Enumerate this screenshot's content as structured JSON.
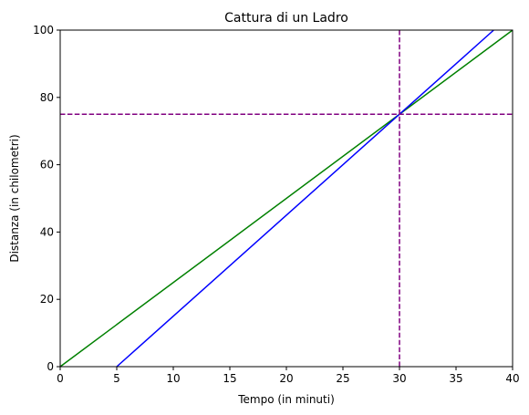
{
  "chart_data": {
    "type": "line",
    "title": "Cattura di un Ladro",
    "xlabel": "Tempo (in minuti)",
    "ylabel": "Distanza (in chilometri)",
    "xlim": [
      0,
      40
    ],
    "ylim": [
      0,
      100
    ],
    "xticks": [
      0,
      5,
      10,
      15,
      20,
      25,
      30,
      35,
      40
    ],
    "yticks": [
      0,
      20,
      40,
      60,
      80,
      100
    ],
    "grid": false,
    "series": [
      {
        "color": "#008000",
        "points": [
          [
            0,
            0
          ],
          [
            40,
            100
          ]
        ]
      },
      {
        "color": "#0000ff",
        "points": [
          [
            5,
            0
          ],
          [
            38.33,
            100
          ]
        ]
      }
    ],
    "reference_lines": [
      {
        "orientation": "vertical",
        "value": 30,
        "color": "#800080",
        "style": "dashed"
      },
      {
        "orientation": "horizontal",
        "value": 75,
        "color": "#800080",
        "style": "dashed"
      }
    ]
  }
}
